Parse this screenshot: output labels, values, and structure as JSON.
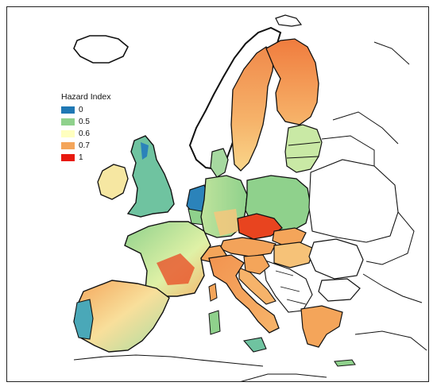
{
  "legend": {
    "title": "Hazard Index",
    "items": [
      {
        "label": "0",
        "color": "#1f78b4"
      },
      {
        "label": "0.5",
        "color": "#8fd18c"
      },
      {
        "label": "0.6",
        "color": "#ffffbf"
      },
      {
        "label": "0.7",
        "color": "#f4a55a"
      },
      {
        "label": "1",
        "color": "#e8190f"
      }
    ]
  }
}
